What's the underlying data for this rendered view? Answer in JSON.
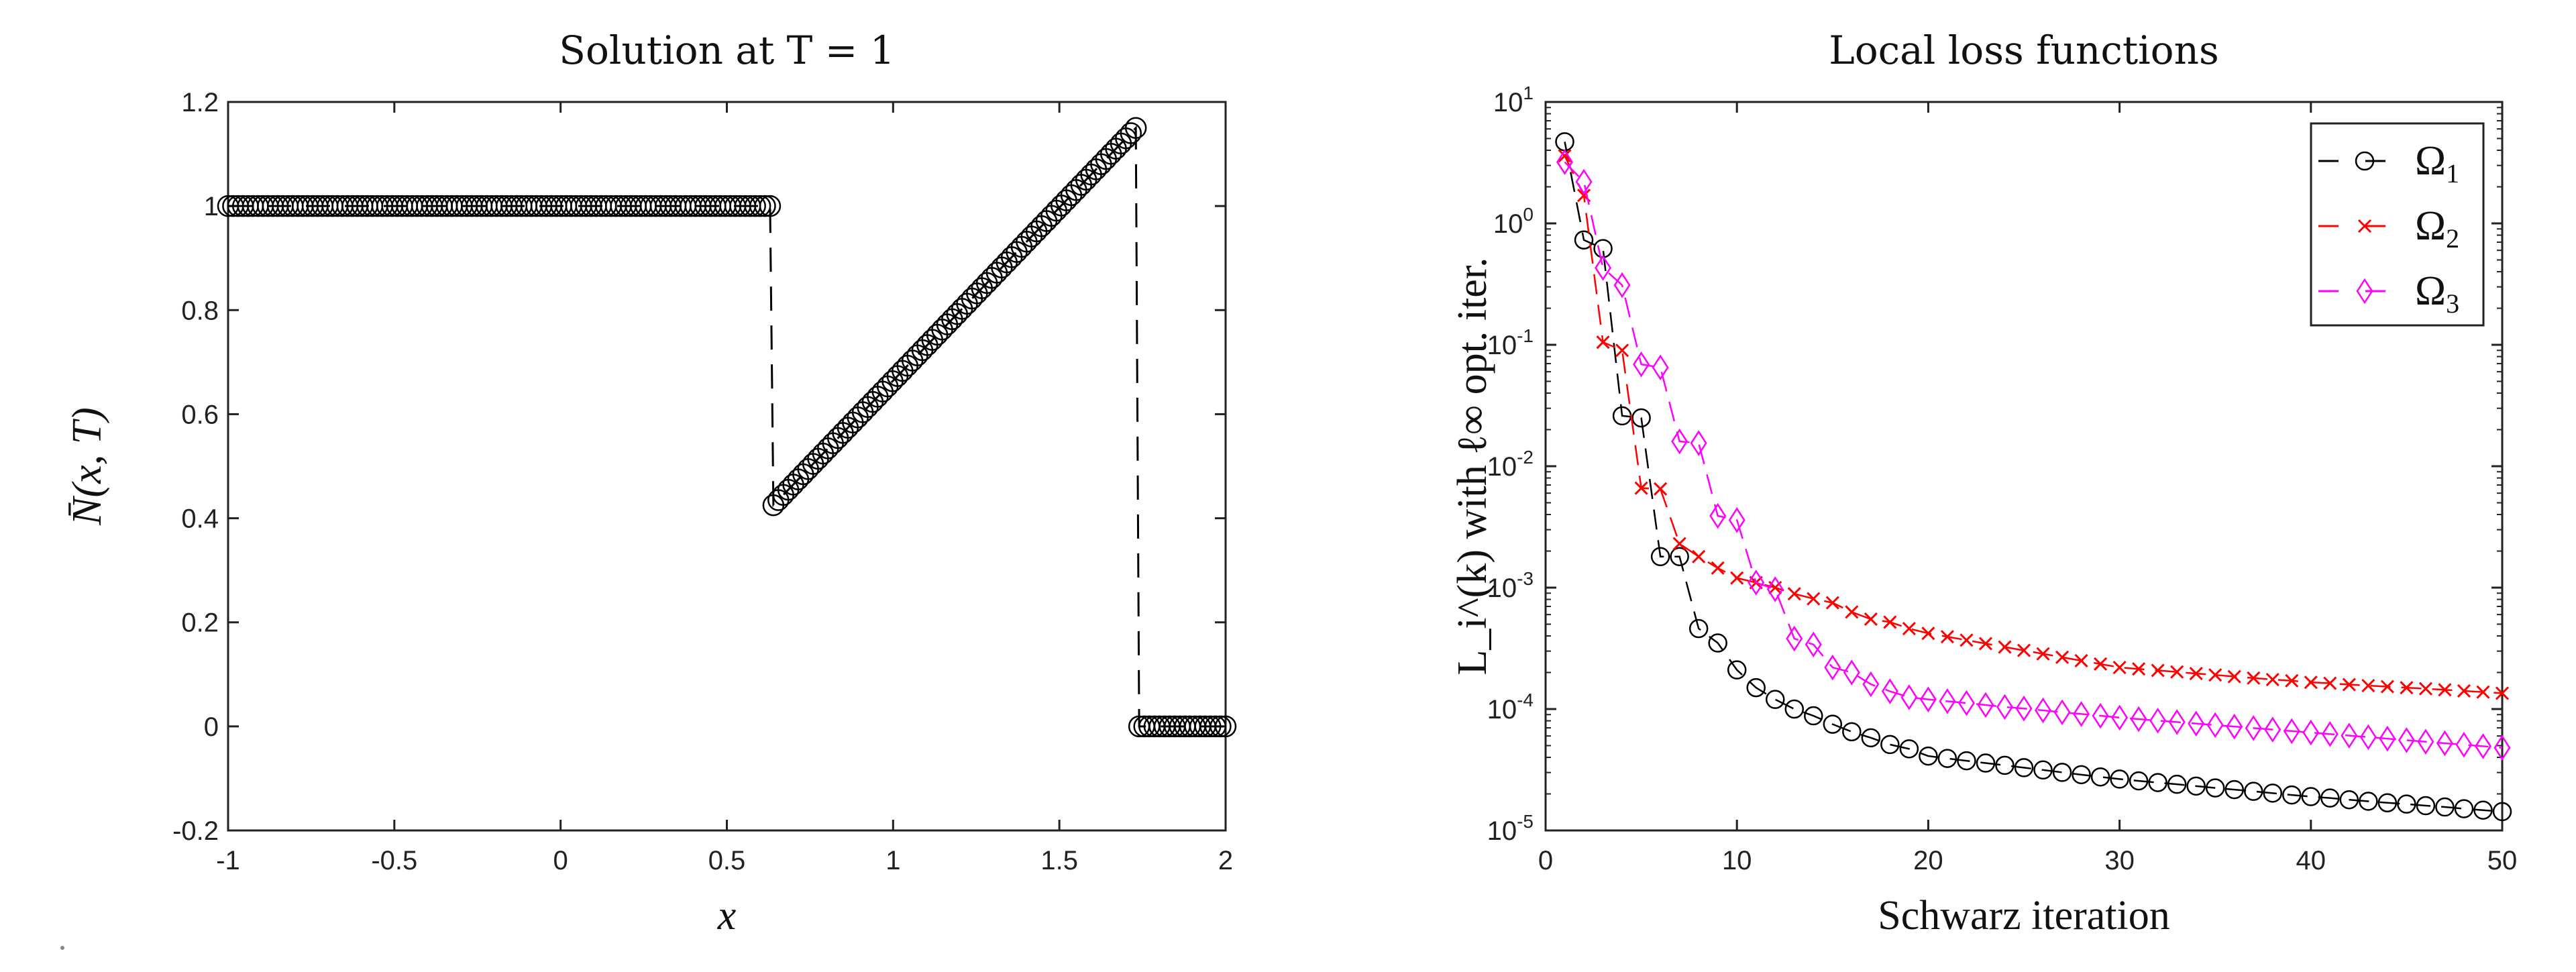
{
  "chart_data": [
    {
      "type": "line",
      "title": "Solution at T = 1",
      "xlabel": "x",
      "ylabel": "N̄(x, T)",
      "xlim": [
        -1,
        2
      ],
      "ylim": [
        -0.2,
        1.2
      ],
      "xticks": [
        "-1",
        "-0.5",
        "0",
        "0.5",
        "1",
        "1.5",
        "2"
      ],
      "yticks": [
        "-0.2",
        "0",
        "0.2",
        "0.4",
        "0.6",
        "0.8",
        "1",
        "1.2"
      ],
      "grid": false,
      "line_style": "dashed",
      "marker": "circle",
      "color": "#000000",
      "marker_spacing": 0.015,
      "segments": [
        {
          "x_start": -1.0,
          "x_end": 0.63,
          "y_start": 1.0,
          "y_end": 1.0
        },
        {
          "x_start": 0.64,
          "x_end": 1.73,
          "y_start": 0.425,
          "y_end": 1.15
        },
        {
          "x_start": 1.74,
          "x_end": 2.0,
          "y_start": 0.0,
          "y_end": 0.0
        }
      ]
    },
    {
      "type": "line",
      "title": "Local loss functions",
      "xlabel": "Schwarz iteration",
      "ylabel": "L_i^(k) with ℓ∞ opt. iter.",
      "xlim": [
        0,
        50
      ],
      "ylim": [
        1e-05,
        10
      ],
      "yscale": "log",
      "xticks": [
        "0",
        "10",
        "20",
        "30",
        "40",
        "50"
      ],
      "yticks": [
        "10^1",
        "10^0",
        "10^-1",
        "10^-2",
        "10^-3",
        "10^-4",
        "10^-5"
      ],
      "grid": false,
      "legend": "top-right",
      "x": [
        1,
        2,
        3,
        4,
        5,
        6,
        7,
        8,
        9,
        10,
        11,
        12,
        13,
        14,
        15,
        16,
        17,
        18,
        19,
        20,
        21,
        22,
        23,
        24,
        25,
        26,
        27,
        28,
        29,
        30,
        31,
        32,
        33,
        34,
        35,
        36,
        37,
        38,
        39,
        40,
        41,
        42,
        43,
        44,
        45,
        46,
        47,
        48,
        49,
        50
      ],
      "series": [
        {
          "name": "Ω1",
          "color": "#000000",
          "marker": "circle",
          "values": [
            4.7,
            0.73,
            0.62,
            0.026,
            0.025,
            0.0018,
            0.0018,
            0.00046,
            0.00035,
            0.00021,
            0.00015,
            0.00012,
            0.0001,
            8.8e-05,
            7.5e-05,
            6.5e-05,
            5.8e-05,
            5.1e-05,
            4.7e-05,
            4.1e-05,
            3.92e-05,
            3.75e-05,
            3.59e-05,
            3.44e-05,
            3.29e-05,
            3.15e-05,
            3.01e-05,
            2.88e-05,
            2.76e-05,
            2.65e-05,
            2.56e-05,
            2.48e-05,
            2.4e-05,
            2.32e-05,
            2.24e-05,
            2.17e-05,
            2.1e-05,
            2.03e-05,
            1.96e-05,
            1.9e-05,
            1.85e-05,
            1.79e-05,
            1.74e-05,
            1.69e-05,
            1.65e-05,
            1.6e-05,
            1.56e-05,
            1.51e-05,
            1.47e-05,
            1.43e-05
          ]
        },
        {
          "name": "Ω2",
          "color": "#ff0000",
          "marker": "x",
          "values": [
            3.6,
            1.7,
            0.105,
            0.09,
            0.0066,
            0.0065,
            0.0023,
            0.0018,
            0.00145,
            0.0012,
            0.0011,
            0.001,
            0.00089,
            0.00081,
            0.00075,
            0.00063,
            0.00055,
            0.00052,
            0.00046,
            0.00042,
            0.000394,
            0.000369,
            0.000346,
            0.000324,
            0.000304,
            0.000285,
            0.000267,
            0.00025,
            0.000235,
            0.00022,
            0.000214,
            0.000208,
            0.000202,
            0.000196,
            0.000191,
            0.000185,
            0.00018,
            0.000175,
            0.000171,
            0.000166,
            0.000163,
            0.000159,
            0.000156,
            0.000153,
            0.00015,
            0.000147,
            0.000144,
            0.000141,
            0.000138,
            0.000135
          ]
        },
        {
          "name": "Ω3",
          "color": "#ff00ff",
          "marker": "diamond",
          "values": [
            3.2,
            2.2,
            0.43,
            0.31,
            0.069,
            0.065,
            0.016,
            0.0155,
            0.0039,
            0.0036,
            0.0011,
            0.00097,
            0.00038,
            0.00034,
            0.00022,
            0.0002,
            0.00016,
            0.00014,
            0.000125,
            0.00012,
            0.000116,
            0.000112,
            0.000108,
            0.000104,
            0.000101,
            9.75e-05,
            9.4e-05,
            9.1e-05,
            8.8e-05,
            8.5e-05,
            8.26e-05,
            8.03e-05,
            7.81e-05,
            7.59e-05,
            7.38e-05,
            7.17e-05,
            6.97e-05,
            6.77e-05,
            6.58e-05,
            6.4e-05,
            6.22e-05,
            6.04e-05,
            5.87e-05,
            5.7e-05,
            5.54e-05,
            5.38e-05,
            5.23e-05,
            5.08e-05,
            4.94e-05,
            4.8e-05
          ]
        }
      ]
    }
  ]
}
